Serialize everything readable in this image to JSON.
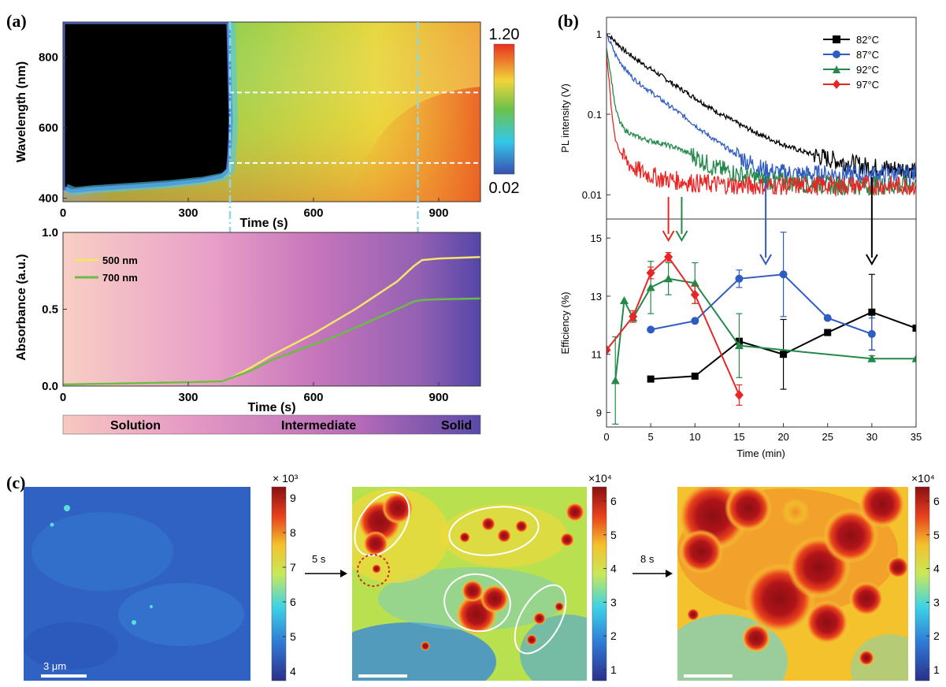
{
  "panels": {
    "a": "(a)",
    "b": "(b)",
    "c": "(c)"
  },
  "chart_data": [
    {
      "type": "heatmap",
      "id": "a-top",
      "xlabel": "Time (s)",
      "ylabel": "Wavelength (nm)",
      "xlim": [
        0,
        1000
      ],
      "ylim": [
        390,
        900
      ],
      "xticks": [
        0,
        300,
        600,
        900
      ],
      "yticks": [
        400,
        600,
        800
      ],
      "colorbar": {
        "max_label": "1.20",
        "min_label": "0.02",
        "range": [
          0.02,
          1.2
        ]
      },
      "guides": {
        "dashed_wavelengths": [
          500,
          700
        ],
        "dashdot_times": [
          400,
          850
        ]
      }
    },
    {
      "type": "line",
      "id": "a-bottom",
      "xlabel": "Time (s)",
      "ylabel": "Absorbance (a.u.)",
      "xlim": [
        0,
        1000
      ],
      "ylim": [
        0,
        1.0
      ],
      "xticks": [
        0,
        300,
        600,
        900
      ],
      "yticks": [
        0.0,
        0.5,
        1.0
      ],
      "ytick_labels": [
        "0.0",
        "0.5",
        "1.0"
      ],
      "series": [
        {
          "name": "500 nm",
          "color": "#f2e56a",
          "x": [
            0,
            100,
            200,
            300,
            380,
            400,
            450,
            500,
            550,
            600,
            650,
            700,
            750,
            800,
            840,
            860,
            900,
            1000
          ],
          "y": [
            0.01,
            0.015,
            0.02,
            0.025,
            0.03,
            0.05,
            0.12,
            0.2,
            0.27,
            0.34,
            0.42,
            0.5,
            0.59,
            0.68,
            0.78,
            0.82,
            0.83,
            0.84
          ]
        },
        {
          "name": "700 nm",
          "color": "#6cbb47",
          "x": [
            0,
            100,
            200,
            300,
            380,
            400,
            450,
            500,
            550,
            600,
            650,
            700,
            750,
            800,
            840,
            860,
            900,
            1000
          ],
          "y": [
            0.01,
            0.015,
            0.02,
            0.025,
            0.03,
            0.05,
            0.1,
            0.17,
            0.22,
            0.27,
            0.32,
            0.38,
            0.44,
            0.5,
            0.55,
            0.56,
            0.565,
            0.57
          ]
        }
      ],
      "stages": [
        "Solution",
        "Intermediate",
        "Solid"
      ]
    },
    {
      "type": "line",
      "id": "b-top",
      "xlabel": "",
      "ylabel": "PL intensity (V)",
      "yscale": "log",
      "xlim": [
        0,
        35
      ],
      "ylim": [
        0.005,
        1.6
      ],
      "yticks": [
        0.01,
        0.1,
        1
      ],
      "ytick_labels": [
        "0.01",
        "0.1",
        "1"
      ],
      "series": [
        {
          "name": "82°C",
          "color": "#000000",
          "x": [
            0,
            1,
            2,
            4,
            6,
            8,
            10,
            12,
            15,
            18,
            20,
            22,
            25,
            28,
            30,
            33,
            35
          ],
          "y": [
            1.0,
            0.8,
            0.62,
            0.43,
            0.31,
            0.22,
            0.16,
            0.115,
            0.075,
            0.052,
            0.042,
            0.035,
            0.028,
            0.024,
            0.022,
            0.021,
            0.021
          ]
        },
        {
          "name": "87°C",
          "color": "#2f5cc0",
          "x": [
            0,
            0.5,
            1,
            2,
            3,
            5,
            7,
            9,
            11,
            13,
            15,
            17,
            19,
            22,
            26,
            30,
            35
          ],
          "y": [
            0.95,
            0.75,
            0.55,
            0.38,
            0.28,
            0.19,
            0.13,
            0.09,
            0.06,
            0.042,
            0.03,
            0.022,
            0.019,
            0.018,
            0.018,
            0.018,
            0.018
          ]
        },
        {
          "name": "92°C",
          "color": "#23894a",
          "x": [
            0,
            0.5,
            1,
            1.5,
            2,
            3,
            4,
            6,
            8,
            10,
            12,
            15,
            18,
            22,
            26,
            30,
            35
          ],
          "y": [
            0.7,
            0.3,
            0.12,
            0.08,
            0.065,
            0.055,
            0.05,
            0.044,
            0.038,
            0.03,
            0.022,
            0.018,
            0.015,
            0.014,
            0.013,
            0.013,
            0.013
          ]
        },
        {
          "name": "97°C",
          "color": "#e82626",
          "x": [
            0,
            0.3,
            0.6,
            1,
            1.5,
            2,
            3,
            4,
            6,
            8,
            10,
            15,
            20,
            25,
            30,
            35
          ],
          "y": [
            0.6,
            0.25,
            0.1,
            0.05,
            0.035,
            0.028,
            0.022,
            0.019,
            0.016,
            0.015,
            0.014,
            0.013,
            0.013,
            0.013,
            0.013,
            0.013
          ]
        }
      ],
      "arrows": [
        {
          "x": 7,
          "color": "#e82626"
        },
        {
          "x": 8.5,
          "color": "#23894a"
        },
        {
          "x": 18,
          "color": "#2f5cc0"
        },
        {
          "x": 30,
          "color": "#000000"
        }
      ]
    },
    {
      "type": "line",
      "id": "b-bottom",
      "xlabel": "Time (min)",
      "ylabel": "Efficiency (%)",
      "xlim": [
        0,
        35
      ],
      "ylim": [
        8.5,
        15.6
      ],
      "xticks": [
        0,
        5,
        10,
        15,
        20,
        25,
        30,
        35
      ],
      "yticks": [
        9,
        11,
        13,
        15
      ],
      "series": [
        {
          "name": "82°C",
          "color": "#000000",
          "marker": "square",
          "x": [
            5,
            10,
            15,
            20,
            25,
            30,
            35
          ],
          "y": [
            10.15,
            10.25,
            11.45,
            11.0,
            11.75,
            12.45,
            11.9
          ],
          "err": [
            0,
            0,
            0,
            1.2,
            0,
            1.3,
            0
          ]
        },
        {
          "name": "87°C",
          "color": "#2f5cc0",
          "marker": "circle",
          "x": [
            5,
            10,
            15,
            20,
            25,
            30
          ],
          "y": [
            11.85,
            12.15,
            13.6,
            13.75,
            12.25,
            11.7
          ],
          "err": [
            0,
            0,
            0.3,
            1.45,
            0,
            0.55
          ]
        },
        {
          "name": "92°C",
          "color": "#23894a",
          "marker": "triangle",
          "x": [
            1,
            2,
            3,
            5,
            7,
            10,
            15,
            30,
            35
          ],
          "y": [
            10.1,
            12.85,
            12.25,
            13.3,
            13.6,
            13.45,
            11.3,
            10.85,
            10.85
          ],
          "err": [
            1.5,
            0,
            0,
            0.9,
            0.55,
            0.7,
            1.1,
            0.1,
            0
          ]
        },
        {
          "name": "97°C",
          "color": "#e82626",
          "marker": "diamond",
          "x": [
            0,
            3,
            5,
            7,
            10,
            15
          ],
          "y": [
            11.15,
            12.3,
            13.8,
            14.35,
            13.05,
            9.6
          ],
          "err": [
            0,
            0.2,
            0.2,
            0.15,
            0.3,
            0.35
          ]
        }
      ]
    }
  ],
  "micrographs": {
    "scale_label": "3 μm",
    "arrows": [
      "5 s",
      "8 s"
    ],
    "colorbars": [
      {
        "exponent_label": "× 10³",
        "ticks": [
          "9",
          "8",
          "7",
          "6",
          "5",
          "4"
        ]
      },
      {
        "exponent_label": "×10⁴",
        "ticks": [
          "6",
          "5",
          "4",
          "3",
          "2",
          "1"
        ]
      },
      {
        "exponent_label": "×10⁴",
        "ticks": [
          "6",
          "5",
          "4",
          "3",
          "2",
          "1"
        ]
      }
    ]
  }
}
